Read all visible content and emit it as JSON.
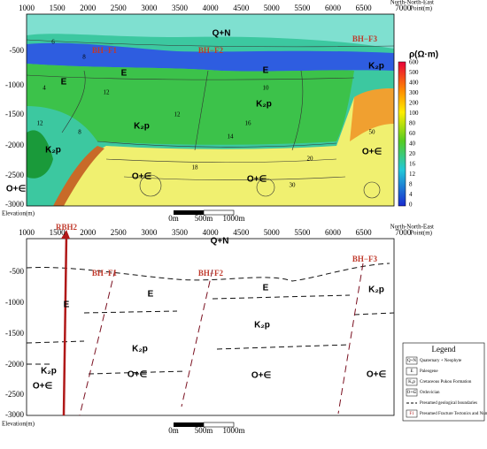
{
  "top_panel": {
    "x_ticks": [
      "1000",
      "1500",
      "2000",
      "2500",
      "3000",
      "3500",
      "4000",
      "4500",
      "5000",
      "5500",
      "6000",
      "6500",
      "7000"
    ],
    "y_ticks": [
      "-500",
      "-1000",
      "-1500",
      "-2000",
      "-2500",
      "-3000"
    ],
    "direction": "North-North-East",
    "x_unit": "Point(m)",
    "y_axis_label": "Elevation(m)",
    "colorbar": {
      "title": "ρ(Ω·m)",
      "ticks": [
        "600",
        "500",
        "400",
        "300",
        "200",
        "100",
        "80",
        "60",
        "40",
        "20",
        "16",
        "12",
        "8",
        "4",
        "0"
      ]
    },
    "labels": [
      "Q+N",
      "BH−F1",
      "BH−F2",
      "BH−F3",
      "E",
      "E",
      "E",
      "K₂p",
      "K₂p",
      "K₂p",
      "K₂p",
      "O+∈",
      "O+∈",
      "O+∈",
      "O+∈"
    ],
    "contour_labels": [
      "6",
      "8",
      "12",
      "16",
      "10",
      "12",
      "14",
      "20",
      "18",
      "30",
      "50",
      "12",
      "8",
      "4"
    ],
    "scale_bar": [
      "0m",
      "500m",
      "1000m"
    ]
  },
  "bottom_panel": {
    "x_ticks": [
      "1000",
      "1500",
      "2000",
      "2500",
      "3000",
      "3500",
      "4000",
      "4500",
      "5000",
      "5500",
      "6000",
      "6500",
      "7000"
    ],
    "y_ticks": [
      "-500",
      "-1000",
      "-1500",
      "-2000",
      "-2500",
      "-3000"
    ],
    "direction": "North-North-East",
    "x_unit": "Point(m)",
    "y_axis_label": "Elevation(m)",
    "labels": [
      "RBH2",
      "Q+N",
      "BH−F1",
      "BH−F2",
      "BH−F3",
      "E",
      "E",
      "E",
      "K₂p",
      "K₂p",
      "K₂p",
      "K₂p",
      "O+∈",
      "O+∈",
      "O+∈",
      "O+∈"
    ],
    "scale_bar": [
      "0m",
      "500m",
      "1000m"
    ],
    "legend": {
      "title": "Legend",
      "items": [
        {
          "symbol": "Q+N",
          "text": "Quaternary + Neophyte"
        },
        {
          "symbol": "E",
          "text": "Paleogene"
        },
        {
          "symbol": "K₂p",
          "text": "Cretaceous Pukou Formation"
        },
        {
          "symbol": "O+∈",
          "text": "Ordovician"
        },
        {
          "text": "Presumed geological boundaries"
        },
        {
          "symbol": "F1",
          "text": "Presumed Fracture Tectonics and Numbering"
        }
      ]
    }
  }
}
